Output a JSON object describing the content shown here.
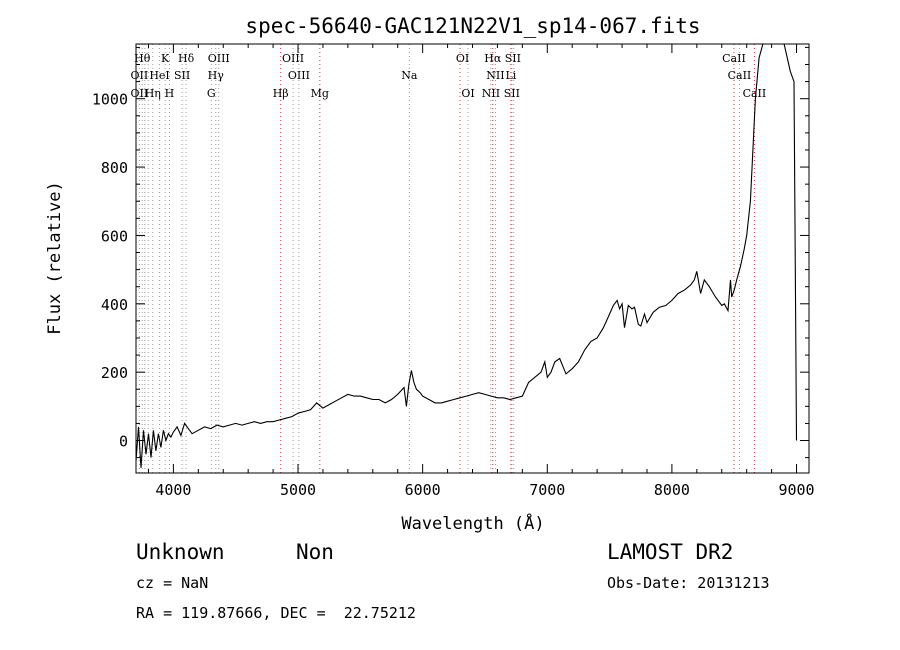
{
  "chart_data": {
    "type": "line",
    "title": "spec-56640-GAC121N22V1_sp14-067.fits",
    "xlabel": "Wavelength (Å)",
    "ylabel": "Flux (relative)",
    "xlim": [
      3700,
      9100
    ],
    "ylim": [
      -95,
      1160
    ],
    "xticks": [
      4000,
      5000,
      6000,
      7000,
      8000,
      9000
    ],
    "xtick_labels": [
      "4000",
      "5000",
      "6000",
      "7000",
      "8000",
      "9000"
    ],
    "yticks": [
      0,
      200,
      400,
      600,
      800,
      1000
    ],
    "ytick_labels": [
      "0",
      "200",
      "400",
      "600",
      "800",
      "1000"
    ],
    "grid": false,
    "series": [
      {
        "x": [
          3700,
          3720,
          3740,
          3760,
          3780,
          3800,
          3820,
          3840,
          3860,
          3880,
          3900,
          3920,
          3940,
          3960,
          3980,
          4000,
          4030,
          4060,
          4090,
          4120,
          4150,
          4200,
          4250,
          4300,
          4350,
          4400,
          4450,
          4500,
          4550,
          4600,
          4650,
          4700,
          4750,
          4800,
          4850,
          4900,
          4950,
          5000,
          5050,
          5100,
          5150,
          5200,
          5250,
          5300,
          5350,
          5400,
          5450,
          5500,
          5550,
          5600,
          5650,
          5700,
          5750,
          5800,
          5850,
          5870,
          5890,
          5910,
          5930,
          5950,
          5980,
          6000,
          6050,
          6100,
          6150,
          6200,
          6250,
          6300,
          6350,
          6400,
          6450,
          6500,
          6550,
          6600,
          6650,
          6700,
          6750,
          6800,
          6850,
          6900,
          6950,
          6980,
          7000,
          7030,
          7060,
          7100,
          7150,
          7200,
          7250,
          7300,
          7350,
          7400,
          7450,
          7500,
          7530,
          7560,
          7580,
          7600,
          7620,
          7650,
          7680,
          7700,
          7730,
          7750,
          7780,
          7800,
          7850,
          7900,
          7950,
          8000,
          8050,
          8100,
          8150,
          8180,
          8200,
          8230,
          8260,
          8300,
          8350,
          8400,
          8420,
          8450,
          8470,
          8480,
          8500,
          8520,
          8550,
          8580,
          8600,
          8630,
          8650,
          8670,
          8700,
          8730,
          8750,
          8800,
          8850,
          8900,
          8950,
          8980,
          9000
        ],
        "y": [
          -60,
          40,
          -80,
          30,
          -40,
          20,
          -50,
          30,
          -30,
          20,
          -20,
          30,
          0,
          20,
          10,
          25,
          40,
          15,
          50,
          35,
          20,
          30,
          40,
          35,
          45,
          40,
          45,
          50,
          45,
          50,
          55,
          50,
          55,
          55,
          60,
          65,
          70,
          80,
          85,
          90,
          110,
          95,
          105,
          115,
          125,
          135,
          130,
          130,
          125,
          120,
          120,
          110,
          120,
          135,
          155,
          100,
          165,
          205,
          170,
          150,
          140,
          130,
          120,
          110,
          110,
          115,
          120,
          125,
          130,
          135,
          140,
          135,
          130,
          125,
          125,
          120,
          125,
          130,
          170,
          185,
          200,
          230,
          185,
          200,
          230,
          240,
          195,
          210,
          230,
          265,
          290,
          300,
          330,
          370,
          395,
          410,
          385,
          400,
          330,
          395,
          385,
          390,
          340,
          335,
          370,
          345,
          375,
          390,
          395,
          410,
          430,
          440,
          455,
          470,
          495,
          430,
          470,
          450,
          420,
          395,
          400,
          380,
          470,
          420,
          440,
          470,
          510,
          560,
          600,
          700,
          850,
          1000,
          1120,
          1160,
          1160,
          1160,
          1160,
          1160,
          1080,
          1050,
          0
        ]
      }
    ],
    "line_labels": {
      "row1": [
        {
          "x": 3750,
          "text": "Hθ"
        },
        {
          "x": 3934,
          "text": "K"
        },
        {
          "x": 4102,
          "text": "Hδ"
        },
        {
          "x": 4364,
          "text": "OIII"
        },
        {
          "x": 4960,
          "text": "OIII"
        },
        {
          "x": 6320,
          "text": "OI"
        },
        {
          "x": 6563,
          "text": "Hα"
        },
        {
          "x": 6724,
          "text": "SII"
        },
        {
          "x": 8498,
          "text": "CaII"
        }
      ],
      "row2": [
        {
          "x": 3727,
          "text": "OII"
        },
        {
          "x": 3889,
          "text": "HeI"
        },
        {
          "x": 4070,
          "text": "SII"
        },
        {
          "x": 4340,
          "text": "Hγ"
        },
        {
          "x": 5007,
          "text": "OIII"
        },
        {
          "x": 5893,
          "text": "Na"
        },
        {
          "x": 6584,
          "text": "NII"
        },
        {
          "x": 6708,
          "text": "Li"
        },
        {
          "x": 8542,
          "text": "CaII"
        }
      ],
      "row3": [
        {
          "x": 3727,
          "text": "OII"
        },
        {
          "x": 3835,
          "text": "Hη"
        },
        {
          "x": 3968,
          "text": "H"
        },
        {
          "x": 4304,
          "text": "G"
        },
        {
          "x": 4861,
          "text": "Hβ"
        },
        {
          "x": 5175,
          "text": "Mg"
        },
        {
          "x": 6364,
          "text": "OI"
        },
        {
          "x": 6548,
          "text": "NII"
        },
        {
          "x": 6716,
          "text": "SII"
        },
        {
          "x": 8662,
          "text": "CaII"
        }
      ]
    },
    "line_markers": [
      {
        "x": 3727,
        "color": "#999999"
      },
      {
        "x": 3750,
        "color": "#999999"
      },
      {
        "x": 3771,
        "color": "#999999"
      },
      {
        "x": 3798,
        "color": "#999999"
      },
      {
        "x": 3835,
        "color": "#999999"
      },
      {
        "x": 3889,
        "color": "#999999"
      },
      {
        "x": 3934,
        "color": "#999999"
      },
      {
        "x": 3968,
        "color": "#999999"
      },
      {
        "x": 4070,
        "color": "#999999"
      },
      {
        "x": 4102,
        "color": "#999999"
      },
      {
        "x": 4304,
        "color": "#999999"
      },
      {
        "x": 4340,
        "color": "#999999"
      },
      {
        "x": 4364,
        "color": "#999999"
      },
      {
        "x": 4861,
        "color": "#dd3333"
      },
      {
        "x": 4960,
        "color": "#999999"
      },
      {
        "x": 5007,
        "color": "#999999"
      },
      {
        "x": 5175,
        "color": "#dd3333"
      },
      {
        "x": 5893,
        "color": "#999999"
      },
      {
        "x": 6300,
        "color": "#dd3333"
      },
      {
        "x": 6364,
        "color": "#999999"
      },
      {
        "x": 6548,
        "color": "#999999"
      },
      {
        "x": 6563,
        "color": "#dd3333"
      },
      {
        "x": 6584,
        "color": "#999999"
      },
      {
        "x": 6708,
        "color": "#dd3333"
      },
      {
        "x": 6716,
        "color": "#999999"
      },
      {
        "x": 6731,
        "color": "#999999"
      },
      {
        "x": 8498,
        "color": "#dd3333"
      },
      {
        "x": 8542,
        "color": "#999999"
      },
      {
        "x": 8662,
        "color": "#dd3333"
      }
    ]
  },
  "info": {
    "object_class": "Unknown",
    "object_subclass": "Non",
    "redshift": "cz = NaN",
    "coords": "RA = 119.87666, DEC =  22.75212",
    "survey": "LAMOST DR2",
    "obs_date": "Obs-Date: 20131213"
  }
}
